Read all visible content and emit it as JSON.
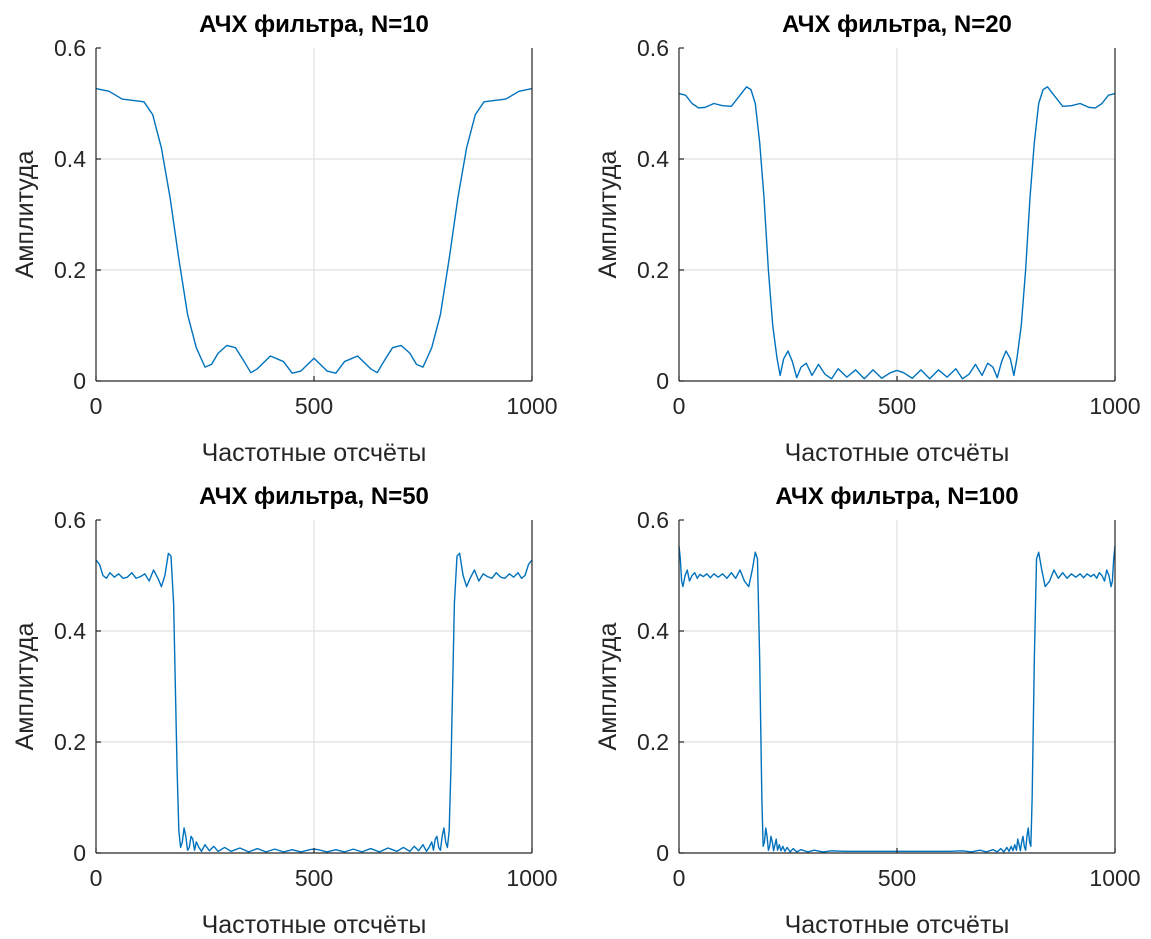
{
  "colors": {
    "series": "#0072bd",
    "axis": "#262626",
    "grid": "#dfdfdf"
  },
  "chart_data": [
    {
      "type": "line",
      "title": "АЧХ фильтра, N=10",
      "xlabel": "Частотные отсчёты",
      "ylabel": "Амплитуда",
      "xlim": [
        0,
        1000
      ],
      "ylim": [
        0,
        0.6
      ],
      "xticks": [
        "0",
        "500",
        "1000"
      ],
      "yticks": [
        "0",
        "0.2",
        "0.4",
        "0.6"
      ],
      "grid": true,
      "series": [
        {
          "x": [
            0,
            30,
            60,
            90,
            110,
            130,
            150,
            170,
            190,
            210,
            230,
            250,
            265,
            280,
            300,
            320,
            340,
            355,
            370,
            400,
            430,
            450,
            470,
            500,
            530,
            550,
            570,
            600,
            630,
            645,
            660,
            680,
            700,
            720,
            735,
            750,
            770,
            790,
            810,
            830,
            850,
            870,
            890,
            910,
            940,
            970,
            1000
          ],
          "y": [
            0.527,
            0.522,
            0.508,
            0.505,
            0.503,
            0.48,
            0.42,
            0.33,
            0.22,
            0.12,
            0.06,
            0.025,
            0.03,
            0.05,
            0.064,
            0.06,
            0.035,
            0.015,
            0.022,
            0.045,
            0.035,
            0.014,
            0.018,
            0.041,
            0.018,
            0.014,
            0.035,
            0.045,
            0.022,
            0.015,
            0.035,
            0.06,
            0.064,
            0.05,
            0.03,
            0.025,
            0.06,
            0.12,
            0.22,
            0.33,
            0.42,
            0.48,
            0.503,
            0.505,
            0.508,
            0.522,
            0.527
          ]
        }
      ]
    },
    {
      "type": "line",
      "title": "АЧХ фильтра, N=20",
      "xlabel": "Частотные отсчёты",
      "ylabel": "Амплитуда",
      "xlim": [
        0,
        1000
      ],
      "ylim": [
        0,
        0.6
      ],
      "xticks": [
        "0",
        "500",
        "1000"
      ],
      "yticks": [
        "0",
        "0.2",
        "0.4",
        "0.6"
      ],
      "grid": true,
      "series": [
        {
          "x": [
            0,
            15,
            30,
            45,
            60,
            80,
            100,
            120,
            140,
            155,
            165,
            175,
            185,
            195,
            205,
            215,
            225,
            232,
            240,
            250,
            260,
            270,
            280,
            292,
            305,
            320,
            335,
            350,
            365,
            385,
            405,
            425,
            445,
            465,
            485,
            500,
            515,
            535,
            555,
            575,
            595,
            615,
            635,
            650,
            665,
            680,
            695,
            708,
            720,
            730,
            740,
            750,
            760,
            768,
            775,
            785,
            795,
            805,
            815,
            825,
            835,
            845,
            860,
            880,
            900,
            920,
            940,
            955,
            970,
            985,
            1000
          ],
          "y": [
            0.518,
            0.515,
            0.5,
            0.492,
            0.493,
            0.5,
            0.496,
            0.495,
            0.515,
            0.53,
            0.525,
            0.5,
            0.43,
            0.33,
            0.2,
            0.1,
            0.04,
            0.01,
            0.04,
            0.054,
            0.035,
            0.006,
            0.025,
            0.032,
            0.01,
            0.03,
            0.012,
            0.004,
            0.022,
            0.007,
            0.02,
            0.004,
            0.02,
            0.005,
            0.015,
            0.019,
            0.015,
            0.005,
            0.02,
            0.004,
            0.02,
            0.007,
            0.022,
            0.004,
            0.012,
            0.03,
            0.01,
            0.032,
            0.025,
            0.006,
            0.035,
            0.054,
            0.04,
            0.01,
            0.04,
            0.1,
            0.2,
            0.33,
            0.43,
            0.5,
            0.525,
            0.53,
            0.515,
            0.495,
            0.496,
            0.5,
            0.493,
            0.492,
            0.5,
            0.515,
            0.518
          ]
        }
      ]
    },
    {
      "type": "line",
      "title": "АЧХ фильтра, N=50",
      "xlabel": "Частотные отсчёты",
      "ylabel": "Амплитуда",
      "xlim": [
        0,
        1000
      ],
      "ylim": [
        0,
        0.6
      ],
      "xticks": [
        "0",
        "500",
        "1000"
      ],
      "yticks": [
        "0",
        "0.2",
        "0.4",
        "0.6"
      ],
      "grid": true,
      "series": [
        {
          "x": [
            0,
            8,
            16,
            24,
            32,
            42,
            52,
            62,
            72,
            82,
            92,
            102,
            112,
            122,
            132,
            142,
            150,
            158,
            166,
            172,
            178,
            182,
            186,
            190,
            194,
            198,
            202,
            206,
            210,
            214,
            218,
            222,
            226,
            230,
            236,
            242,
            250,
            260,
            270,
            280,
            295,
            310,
            330,
            350,
            370,
            390,
            410,
            430,
            450,
            470,
            490,
            500,
            510,
            530,
            550,
            570,
            590,
            610,
            630,
            650,
            670,
            690,
            705,
            720,
            730,
            740,
            750,
            758,
            764,
            770,
            774,
            778,
            782,
            786,
            790,
            794,
            798,
            802,
            806,
            810,
            814,
            818,
            822,
            828,
            834,
            842,
            850,
            858,
            868,
            878,
            888,
            898,
            908,
            918,
            928,
            938,
            948,
            958,
            968,
            976,
            984,
            992,
            1000
          ],
          "y": [
            0.528,
            0.52,
            0.5,
            0.495,
            0.505,
            0.497,
            0.503,
            0.495,
            0.497,
            0.505,
            0.495,
            0.498,
            0.503,
            0.49,
            0.51,
            0.495,
            0.48,
            0.5,
            0.54,
            0.535,
            0.45,
            0.3,
            0.15,
            0.04,
            0.01,
            0.02,
            0.045,
            0.03,
            0.005,
            0.01,
            0.03,
            0.025,
            0.005,
            0.02,
            0.01,
            0.003,
            0.015,
            0.004,
            0.012,
            0.003,
            0.01,
            0.003,
            0.009,
            0.002,
            0.008,
            0.002,
            0.007,
            0.002,
            0.006,
            0.002,
            0.006,
            0.007,
            0.006,
            0.002,
            0.006,
            0.002,
            0.007,
            0.002,
            0.008,
            0.002,
            0.009,
            0.003,
            0.01,
            0.003,
            0.012,
            0.004,
            0.015,
            0.003,
            0.01,
            0.02,
            0.005,
            0.025,
            0.03,
            0.01,
            0.005,
            0.03,
            0.045,
            0.02,
            0.01,
            0.04,
            0.15,
            0.3,
            0.45,
            0.535,
            0.54,
            0.5,
            0.48,
            0.495,
            0.51,
            0.49,
            0.503,
            0.498,
            0.495,
            0.505,
            0.497,
            0.495,
            0.503,
            0.497,
            0.505,
            0.495,
            0.5,
            0.52,
            0.528
          ]
        }
      ]
    },
    {
      "type": "line",
      "title": "АЧХ фильтра, N=100",
      "xlabel": "Частотные отсчёты",
      "ylabel": "Амплитуда",
      "xlim": [
        0,
        1000
      ],
      "ylim": [
        0,
        0.6
      ],
      "xticks": [
        "0",
        "500",
        "1000"
      ],
      "yticks": [
        "0",
        "0.2",
        "0.4",
        "0.6"
      ],
      "grid": true,
      "series": [
        {
          "x": [
            0,
            3,
            6,
            9,
            14,
            19,
            24,
            30,
            36,
            42,
            48,
            56,
            64,
            72,
            80,
            90,
            100,
            110,
            120,
            130,
            140,
            150,
            160,
            168,
            175,
            180,
            185,
            190,
            193,
            196,
            199,
            202,
            205,
            208,
            211,
            214,
            217,
            220,
            223,
            226,
            230,
            234,
            238,
            243,
            248,
            255,
            262,
            270,
            280,
            295,
            310,
            330,
            350,
            380,
            410,
            440,
            470,
            500,
            530,
            560,
            590,
            620,
            650,
            670,
            690,
            705,
            720,
            730,
            738,
            745,
            752,
            757,
            762,
            766,
            770,
            774,
            777,
            780,
            783,
            786,
            789,
            792,
            795,
            798,
            801,
            804,
            807,
            810,
            815,
            820,
            825,
            832,
            840,
            850,
            860,
            870,
            880,
            890,
            900,
            910,
            920,
            928,
            936,
            944,
            952,
            958,
            964,
            970,
            976,
            981,
            986,
            991,
            994,
            997,
            1000
          ],
          "y": [
            0.553,
            0.53,
            0.49,
            0.48,
            0.5,
            0.51,
            0.49,
            0.5,
            0.505,
            0.495,
            0.502,
            0.498,
            0.503,
            0.496,
            0.503,
            0.497,
            0.503,
            0.495,
            0.505,
            0.495,
            0.51,
            0.49,
            0.48,
            0.51,
            0.542,
            0.53,
            0.35,
            0.1,
            0.012,
            0.02,
            0.045,
            0.03,
            0.005,
            0.012,
            0.03,
            0.02,
            0.004,
            0.015,
            0.025,
            0.005,
            0.015,
            0.004,
            0.012,
            0.003,
            0.01,
            0.002,
            0.008,
            0.002,
            0.006,
            0.002,
            0.005,
            0.002,
            0.004,
            0.003,
            0.003,
            0.003,
            0.003,
            0.003,
            0.003,
            0.003,
            0.003,
            0.003,
            0.004,
            0.002,
            0.005,
            0.002,
            0.006,
            0.002,
            0.008,
            0.002,
            0.01,
            0.003,
            0.012,
            0.004,
            0.015,
            0.005,
            0.025,
            0.015,
            0.004,
            0.02,
            0.03,
            0.012,
            0.005,
            0.03,
            0.045,
            0.02,
            0.012,
            0.1,
            0.35,
            0.53,
            0.542,
            0.51,
            0.48,
            0.49,
            0.51,
            0.495,
            0.505,
            0.495,
            0.503,
            0.497,
            0.503,
            0.496,
            0.503,
            0.498,
            0.502,
            0.495,
            0.505,
            0.5,
            0.49,
            0.51,
            0.5,
            0.48,
            0.49,
            0.53,
            0.553
          ]
        }
      ]
    }
  ]
}
